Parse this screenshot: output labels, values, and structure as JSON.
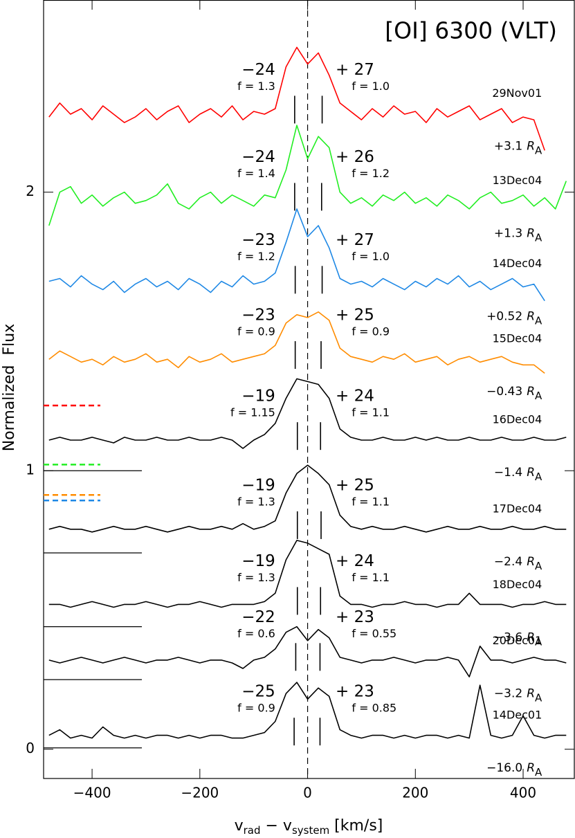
{
  "chart_data": {
    "type": "line",
    "title": "[OI] 6300 (VLT)",
    "ylabel": "Normalized  Flux",
    "xlabel": {
      "v1": "v",
      "sub1": "rad",
      "mid": " − v",
      "sub2": "system",
      "unit": " [km/s]"
    },
    "radius_symbol": "R",
    "radius_index": "A",
    "xlim": [
      -490,
      495
    ],
    "ylim": [
      -0.105,
      2.69
    ],
    "xticks": [
      {
        "value": -400,
        "label": "−400"
      },
      {
        "value": -200,
        "label": "−200"
      },
      0,
      200,
      400
    ],
    "yticks": [
      0,
      1,
      2
    ],
    "center_line": 0,
    "x": [
      -480,
      -460,
      -440,
      -420,
      -400,
      -380,
      -360,
      -340,
      -320,
      -300,
      -280,
      -260,
      -240,
      -220,
      -200,
      -180,
      -160,
      -140,
      -120,
      -100,
      -80,
      -60,
      -40,
      -20,
      0,
      20,
      40,
      60,
      80,
      100,
      120,
      140,
      160,
      180,
      200,
      220,
      240,
      260,
      280,
      300,
      320,
      340,
      360,
      380,
      400,
      420,
      440,
      460,
      480
    ],
    "series": [
      {
        "name": "29Nov01",
        "color": "#ff0000",
        "zero_level": 1.234,
        "position": "+3.1",
        "v_left": {
          "value": -24,
          "label": "−24"
        },
        "f_left": "f = 1.3",
        "v_right": {
          "value": 27,
          "label": "+ 27"
        },
        "f_right": "f = 1.0",
        "values": [
          2.27,
          2.32,
          2.28,
          2.3,
          2.26,
          2.31,
          2.28,
          2.25,
          2.27,
          2.3,
          2.26,
          2.29,
          2.31,
          2.25,
          2.28,
          2.3,
          2.27,
          2.31,
          2.26,
          2.29,
          2.28,
          2.3,
          2.45,
          2.52,
          2.46,
          2.5,
          2.42,
          2.32,
          2.29,
          2.26,
          2.3,
          2.27,
          2.31,
          2.28,
          2.29,
          2.25,
          2.3,
          2.27,
          2.29,
          2.31,
          2.26,
          2.28,
          2.3,
          2.25,
          2.27,
          2.26,
          2.15,
          null,
          null
        ]
      },
      {
        "name": "13Dec04",
        "color": "#22ee22",
        "zero_level": 1.022,
        "position": "+1.3",
        "v_left": {
          "value": -24,
          "label": "−24"
        },
        "f_left": "f = 1.4",
        "v_right": {
          "value": 26,
          "label": "+ 26"
        },
        "f_right": "f = 1.2",
        "values": [
          1.88,
          2.0,
          2.02,
          1.96,
          1.99,
          1.95,
          1.98,
          2.0,
          1.96,
          1.97,
          1.99,
          2.03,
          1.96,
          1.94,
          1.98,
          2.0,
          1.96,
          1.99,
          1.97,
          1.95,
          1.99,
          1.98,
          2.08,
          2.24,
          2.12,
          2.2,
          2.16,
          2.0,
          1.96,
          1.98,
          1.95,
          1.99,
          1.97,
          2.0,
          1.96,
          1.98,
          1.95,
          1.99,
          1.97,
          1.94,
          1.98,
          2.0,
          1.96,
          1.97,
          1.99,
          1.95,
          1.98,
          1.94,
          2.04
        ]
      },
      {
        "name": "14Dec04",
        "color": "#1e88e5",
        "zero_level": 0.893,
        "position": "+0.52",
        "v_left": {
          "value": -23,
          "label": "−23"
        },
        "f_left": "f = 1.2",
        "v_right": {
          "value": 27,
          "label": "+ 27"
        },
        "f_right": "f = 1.0",
        "values": [
          1.68,
          1.69,
          1.66,
          1.7,
          1.67,
          1.65,
          1.68,
          1.64,
          1.67,
          1.69,
          1.66,
          1.68,
          1.65,
          1.69,
          1.67,
          1.64,
          1.68,
          1.66,
          1.7,
          1.67,
          1.68,
          1.71,
          1.82,
          1.94,
          1.84,
          1.88,
          1.8,
          1.69,
          1.67,
          1.68,
          1.66,
          1.69,
          1.67,
          1.65,
          1.68,
          1.66,
          1.69,
          1.67,
          1.7,
          1.66,
          1.68,
          1.65,
          1.67,
          1.69,
          1.66,
          1.67,
          1.61,
          null,
          null
        ]
      },
      {
        "name": "15Dec04",
        "color": "#ff8c00",
        "zero_level": 0.913,
        "position": "−0.43",
        "v_left": {
          "value": -23,
          "label": "−23"
        },
        "f_left": "f = 0.9",
        "v_right": {
          "value": 25,
          "label": "+ 25"
        },
        "f_right": "f = 0.9",
        "values": [
          1.4,
          1.43,
          1.41,
          1.39,
          1.4,
          1.38,
          1.41,
          1.39,
          1.4,
          1.42,
          1.39,
          1.4,
          1.37,
          1.41,
          1.39,
          1.4,
          1.42,
          1.39,
          1.4,
          1.41,
          1.42,
          1.45,
          1.53,
          1.56,
          1.55,
          1.57,
          1.54,
          1.44,
          1.41,
          1.4,
          1.39,
          1.41,
          1.4,
          1.42,
          1.39,
          1.4,
          1.41,
          1.38,
          1.4,
          1.41,
          1.39,
          1.4,
          1.41,
          1.39,
          1.38,
          1.38,
          1.35,
          null,
          null
        ]
      },
      {
        "name": "16Dec04",
        "color": "#000000",
        "zero_level": 1.0,
        "position": "−1.4",
        "v_left": {
          "value": -19,
          "label": "−19"
        },
        "f_left": "f = 1.15",
        "v_right": {
          "value": 24,
          "label": "+ 24"
        },
        "f_right": "f = 1.1",
        "values": [
          1.11,
          1.12,
          1.11,
          1.11,
          1.12,
          1.11,
          1.1,
          1.12,
          1.11,
          1.11,
          1.12,
          1.11,
          1.11,
          1.12,
          1.11,
          1.11,
          1.12,
          1.11,
          1.08,
          1.11,
          1.13,
          1.17,
          1.26,
          1.33,
          1.32,
          1.31,
          1.26,
          1.15,
          1.12,
          1.11,
          1.11,
          1.12,
          1.11,
          1.11,
          1.12,
          1.11,
          1.12,
          1.11,
          1.11,
          1.12,
          1.11,
          1.11,
          1.12,
          1.11,
          1.11,
          1.12,
          1.11,
          1.11,
          1.12
        ]
      },
      {
        "name": "17Dec04",
        "color": "#000000",
        "zero_level": 0.705,
        "position": "−2.4",
        "v_left": {
          "value": -19,
          "label": "−19"
        },
        "f_left": "f = 1.3",
        "v_right": {
          "value": 25,
          "label": "+ 25"
        },
        "f_right": "f = 1.1",
        "values": [
          0.79,
          0.8,
          0.79,
          0.79,
          0.78,
          0.79,
          0.8,
          0.79,
          0.79,
          0.8,
          0.79,
          0.78,
          0.79,
          0.8,
          0.79,
          0.79,
          0.8,
          0.79,
          0.81,
          0.79,
          0.8,
          0.82,
          0.92,
          0.99,
          1.02,
          0.99,
          0.95,
          0.84,
          0.8,
          0.79,
          0.8,
          0.79,
          0.79,
          0.8,
          0.79,
          0.78,
          0.79,
          0.8,
          0.79,
          0.79,
          0.8,
          0.79,
          0.79,
          0.8,
          0.79,
          0.79,
          0.8,
          0.79,
          0.79
        ]
      },
      {
        "name": "18Dec04",
        "color": "#000000",
        "zero_level": 0.44,
        "position": "−3.6",
        "v_left": {
          "value": -19,
          "label": "−19"
        },
        "f_left": "f = 1.3",
        "v_right": {
          "value": 24,
          "label": "+ 24"
        },
        "f_right": "f = 1.1",
        "values": [
          0.52,
          0.52,
          0.51,
          0.52,
          0.53,
          0.52,
          0.51,
          0.52,
          0.52,
          0.53,
          0.52,
          0.51,
          0.52,
          0.52,
          0.53,
          0.52,
          0.51,
          0.52,
          0.52,
          0.52,
          0.53,
          0.56,
          0.68,
          0.75,
          0.74,
          0.72,
          0.7,
          0.55,
          0.52,
          0.52,
          0.51,
          0.52,
          0.52,
          0.53,
          0.52,
          0.52,
          0.51,
          0.52,
          0.52,
          0.56,
          0.52,
          0.52,
          0.52,
          0.51,
          0.52,
          0.52,
          0.53,
          0.52,
          0.52
        ]
      },
      {
        "name": "20Dec01",
        "color": "#000000",
        "zero_level": 0.25,
        "position": "−3.2",
        "v_left": {
          "value": -22,
          "label": "−22"
        },
        "f_left": "f = 0.6",
        "v_right": {
          "value": 23,
          "label": "+ 23"
        },
        "f_right": "f = 0.55",
        "values": [
          0.32,
          0.31,
          0.32,
          0.33,
          0.32,
          0.31,
          0.32,
          0.33,
          0.32,
          0.31,
          0.32,
          0.32,
          0.33,
          0.32,
          0.31,
          0.32,
          0.32,
          0.31,
          0.29,
          0.32,
          0.33,
          0.36,
          0.42,
          0.44,
          0.39,
          0.43,
          0.4,
          0.33,
          0.32,
          0.31,
          0.32,
          0.32,
          0.33,
          0.32,
          0.31,
          0.32,
          0.32,
          0.33,
          0.32,
          0.26,
          0.37,
          0.32,
          0.32,
          0.31,
          0.32,
          0.33,
          0.32,
          0.32,
          0.31
        ]
      },
      {
        "name": "14Dec01",
        "color": "#000000",
        "zero_level": 0.005,
        "position": "−16.0",
        "v_left": {
          "value": -25,
          "label": "−25"
        },
        "f_left": "f = 0.9",
        "v_right": {
          "value": 23,
          "label": "+ 23"
        },
        "f_right": "f = 0.85",
        "values": [
          0.05,
          0.07,
          0.04,
          0.05,
          0.04,
          0.08,
          0.05,
          0.04,
          0.05,
          0.04,
          0.05,
          0.05,
          0.04,
          0.05,
          0.04,
          0.05,
          0.05,
          0.04,
          0.04,
          0.05,
          0.06,
          0.1,
          0.2,
          0.24,
          0.18,
          0.22,
          0.19,
          0.07,
          0.05,
          0.04,
          0.05,
          0.05,
          0.04,
          0.05,
          0.04,
          0.05,
          0.05,
          0.04,
          0.05,
          0.04,
          0.23,
          0.05,
          0.04,
          0.05,
          0.12,
          0.05,
          0.04,
          0.05,
          0.05
        ]
      }
    ]
  }
}
